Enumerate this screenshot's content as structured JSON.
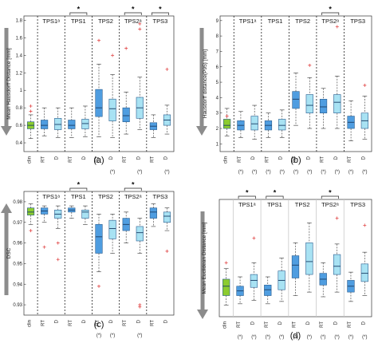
{
  "colors": {
    "clin": "#8ccc2e",
    "rt": "#4f9de0",
    "d": "#a8e2f3",
    "outlier": "#e24b4b",
    "arrow": "#8c8c8c"
  },
  "chart_data": [
    {
      "panel": "a",
      "type": "box",
      "panel_label": "(a)",
      "ylabel": "Mean Hausdorff Distance [mm]",
      "ylim": [
        0.3,
        1.85
      ],
      "yticks": [
        0.4,
        0.6,
        0.8,
        1.0,
        1.2,
        1.4,
        1.6,
        1.8
      ],
      "arrow": "down",
      "groups": [
        "TPS1ᵃ",
        "TPS1",
        "TPS2",
        "TPS2ᵃ",
        "TPS3"
      ],
      "brackets": [
        1,
        3,
        4
      ],
      "boxes": [
        {
          "label": "clin",
          "kind": "clin",
          "q1": 0.56,
          "med": 0.6,
          "q3": 0.64,
          "lo": 0.45,
          "hi": 0.72,
          "out": [
            0.82,
            0.76
          ]
        },
        {
          "label": "RT",
          "kind": "rt",
          "q1": 0.56,
          "med": 0.6,
          "q3": 0.66,
          "lo": 0.48,
          "hi": 0.8,
          "out": []
        },
        {
          "label": "D",
          "kind": "d",
          "q1": 0.55,
          "med": 0.61,
          "q3": 0.68,
          "lo": 0.46,
          "hi": 0.8,
          "out": []
        },
        {
          "label": "RT",
          "kind": "rt",
          "q1": 0.56,
          "med": 0.6,
          "q3": 0.66,
          "lo": 0.46,
          "hi": 0.8,
          "out": []
        },
        {
          "label": "D",
          "kind": "d",
          "q1": 0.56,
          "med": 0.62,
          "q3": 0.67,
          "lo": 0.47,
          "hi": 0.82,
          "out": []
        },
        {
          "label": "RT",
          "kind": "rt",
          "q1": 0.7,
          "med": 0.8,
          "q3": 1.01,
          "lo": 0.47,
          "hi": 1.3,
          "out": [
            1.57
          ]
        },
        {
          "label": "D",
          "kind": "d",
          "q1": 0.65,
          "med": 0.79,
          "q3": 0.9,
          "lo": 0.46,
          "hi": 1.18,
          "out": [
            1.4
          ]
        },
        {
          "label": "RT",
          "kind": "rt",
          "q1": 0.64,
          "med": 0.71,
          "q3": 0.8,
          "lo": 0.5,
          "hi": 0.98,
          "out": [
            1.48
          ]
        },
        {
          "label": "D",
          "kind": "d",
          "q1": 0.68,
          "med": 0.8,
          "q3": 0.92,
          "lo": 0.55,
          "hi": 1.15,
          "out": [
            1.7,
            1.76
          ]
        },
        {
          "label": "RT",
          "kind": "rt",
          "q1": 0.55,
          "med": 0.59,
          "q3": 0.63,
          "lo": 0.46,
          "hi": 0.72,
          "out": []
        },
        {
          "label": "D",
          "kind": "d",
          "q1": 0.6,
          "med": 0.66,
          "q3": 0.72,
          "lo": 0.5,
          "hi": 0.83,
          "out": [
            1.24
          ]
        }
      ],
      "star_under": [
        false,
        false,
        false,
        false,
        false,
        false,
        true,
        false,
        true,
        false,
        true
      ]
    },
    {
      "panel": "b",
      "type": "box",
      "panel_label": "(b)",
      "ylabel": "Hausdorff distance(P95) [mm]",
      "ylim": [
        0.5,
        9.3
      ],
      "yticks": [
        1,
        2,
        3,
        4,
        5,
        6,
        7,
        8,
        9
      ],
      "arrow": "down",
      "groups": [
        "TPS1ᵃ",
        "TPS1",
        "TPS2",
        "TPS2ᵃ",
        "TPS3"
      ],
      "brackets": [
        3
      ],
      "boxes": [
        {
          "label": "clin",
          "kind": "clin",
          "q1": 2.0,
          "med": 2.2,
          "q3": 2.6,
          "lo": 1.5,
          "hi": 3.3,
          "out": [
            2.8
          ]
        },
        {
          "label": "RT",
          "kind": "rt",
          "q1": 1.9,
          "med": 2.2,
          "q3": 2.5,
          "lo": 1.4,
          "hi": 3.1,
          "out": []
        },
        {
          "label": "D",
          "kind": "d",
          "q1": 1.9,
          "med": 2.3,
          "q3": 2.8,
          "lo": 1.3,
          "hi": 3.5,
          "out": []
        },
        {
          "label": "RT",
          "kind": "rt",
          "q1": 1.9,
          "med": 2.2,
          "q3": 2.5,
          "lo": 1.4,
          "hi": 3.0,
          "out": []
        },
        {
          "label": "D",
          "kind": "d",
          "q1": 1.9,
          "med": 2.2,
          "q3": 2.6,
          "lo": 1.4,
          "hi": 3.2,
          "out": []
        },
        {
          "label": "RT",
          "kind": "rt",
          "q1": 3.3,
          "med": 3.9,
          "q3": 4.4,
          "lo": 2.2,
          "hi": 5.6,
          "out": []
        },
        {
          "label": "D",
          "kind": "d",
          "q1": 3.0,
          "med": 3.5,
          "q3": 4.2,
          "lo": 2.0,
          "hi": 5.3,
          "out": [
            6.1
          ]
        },
        {
          "label": "RT",
          "kind": "rt",
          "q1": 3.0,
          "med": 3.4,
          "q3": 3.9,
          "lo": 2.0,
          "hi": 4.6,
          "out": []
        },
        {
          "label": "D",
          "kind": "d",
          "q1": 3.0,
          "med": 3.7,
          "q3": 4.2,
          "lo": 2.0,
          "hi": 5.4,
          "out": [
            8.6
          ]
        },
        {
          "label": "RT",
          "kind": "rt",
          "q1": 2.0,
          "med": 2.4,
          "q3": 2.8,
          "lo": 1.2,
          "hi": 3.8,
          "out": []
        },
        {
          "label": "D",
          "kind": "d",
          "q1": 2.0,
          "med": 2.5,
          "q3": 3.0,
          "lo": 1.3,
          "hi": 4.1,
          "out": [
            4.8
          ]
        }
      ],
      "star_under": [
        false,
        true,
        true,
        true,
        true,
        true,
        true,
        true,
        true,
        true,
        true
      ]
    },
    {
      "panel": "c",
      "type": "box",
      "panel_label": "(c)",
      "ylabel": "DSC",
      "ylim": [
        0.925,
        0.985
      ],
      "yticks": [
        0.93,
        0.94,
        0.95,
        0.96,
        0.97,
        0.98
      ],
      "arrow": "up",
      "groups": [
        "TPS1ᵃ",
        "TPS1",
        "TPS2",
        "TPS2ᵃ",
        "TPS3"
      ],
      "brackets": [
        1,
        3
      ],
      "boxes": [
        {
          "label": "clin",
          "kind": "clin",
          "q1": 0.9735,
          "med": 0.975,
          "q3": 0.977,
          "lo": 0.969,
          "hi": 0.979,
          "out": [
            0.966
          ]
        },
        {
          "label": "RT",
          "kind": "rt",
          "q1": 0.974,
          "med": 0.9755,
          "q3": 0.977,
          "lo": 0.97,
          "hi": 0.978,
          "out": [
            0.958
          ]
        },
        {
          "label": "D",
          "kind": "d",
          "q1": 0.972,
          "med": 0.974,
          "q3": 0.976,
          "lo": 0.967,
          "hi": 0.978,
          "out": [
            0.96,
            0.952
          ]
        },
        {
          "label": "RT",
          "kind": "rt",
          "q1": 0.975,
          "med": 0.976,
          "q3": 0.977,
          "lo": 0.972,
          "hi": 0.978,
          "out": []
        },
        {
          "label": "D",
          "kind": "d",
          "q1": 0.972,
          "med": 0.975,
          "q3": 0.976,
          "lo": 0.969,
          "hi": 0.978,
          "out": []
        },
        {
          "label": "RT",
          "kind": "rt",
          "q1": 0.955,
          "med": 0.963,
          "q3": 0.969,
          "lo": 0.946,
          "hi": 0.974,
          "out": [
            0.939
          ]
        },
        {
          "label": "D",
          "kind": "d",
          "q1": 0.962,
          "med": 0.967,
          "q3": 0.971,
          "lo": 0.955,
          "hi": 0.974,
          "out": []
        },
        {
          "label": "RT",
          "kind": "rt",
          "q1": 0.966,
          "med": 0.969,
          "q3": 0.972,
          "lo": 0.96,
          "hi": 0.975,
          "out": []
        },
        {
          "label": "D",
          "kind": "d",
          "q1": 0.961,
          "med": 0.965,
          "q3": 0.968,
          "lo": 0.955,
          "hi": 0.972,
          "out": [
            0.93,
            0.929
          ]
        },
        {
          "label": "RT",
          "kind": "rt",
          "q1": 0.972,
          "med": 0.975,
          "q3": 0.977,
          "lo": 0.968,
          "hi": 0.979,
          "out": []
        },
        {
          "label": "D",
          "kind": "d",
          "q1": 0.97,
          "med": 0.973,
          "q3": 0.975,
          "lo": 0.966,
          "hi": 0.977,
          "out": [
            0.956
          ]
        }
      ],
      "star_under": [
        false,
        false,
        false,
        false,
        false,
        true,
        true,
        false,
        true,
        false,
        false
      ]
    },
    {
      "panel": "d",
      "type": "box",
      "panel_label": "(d)",
      "ylabel": "Mean Euclidean Distance [mm]",
      "ylim": [
        0,
        10
      ],
      "yticks": [],
      "arrow": "down",
      "groups": [
        "TPS1ᵃ",
        "TPS1",
        "TPS2",
        "TPS2ᵃ",
        "TPS3"
      ],
      "brackets": [
        0,
        1,
        3
      ],
      "boxes": [
        {
          "label": "clin",
          "kind": "clin",
          "q1": 1.8,
          "med": 2.6,
          "q3": 3.2,
          "lo": 1.0,
          "hi": 4.1,
          "out": [
            4.6
          ]
        },
        {
          "label": "RT",
          "kind": "rt",
          "q1": 1.8,
          "med": 2.2,
          "q3": 2.6,
          "lo": 1.1,
          "hi": 3.4,
          "out": []
        },
        {
          "label": "D",
          "kind": "d",
          "q1": 2.5,
          "med": 3.1,
          "q3": 3.6,
          "lo": 1.4,
          "hi": 4.6,
          "out": [
            6.7
          ]
        },
        {
          "label": "RT",
          "kind": "rt",
          "q1": 1.8,
          "med": 2.3,
          "q3": 2.7,
          "lo": 1.1,
          "hi": 3.4,
          "out": []
        },
        {
          "label": "D",
          "kind": "d",
          "q1": 2.3,
          "med": 3.1,
          "q3": 3.9,
          "lo": 1.3,
          "hi": 5.0,
          "out": []
        },
        {
          "label": "RT",
          "kind": "rt",
          "q1": 3.3,
          "med": 4.4,
          "q3": 5.2,
          "lo": 1.8,
          "hi": 6.3,
          "out": []
        },
        {
          "label": "D",
          "kind": "d",
          "q1": 3.6,
          "med": 4.7,
          "q3": 6.3,
          "lo": 2.1,
          "hi": 8.0,
          "out": []
        },
        {
          "label": "RT",
          "kind": "rt",
          "q1": 2.7,
          "med": 3.2,
          "q3": 3.7,
          "lo": 1.7,
          "hi": 4.6,
          "out": []
        },
        {
          "label": "D",
          "kind": "d",
          "q1": 3.6,
          "med": 4.3,
          "q3": 5.3,
          "lo": 2.1,
          "hi": 6.2,
          "out": [
            8.4
          ]
        },
        {
          "label": "RT",
          "kind": "rt",
          "q1": 2.1,
          "med": 2.6,
          "q3": 3.1,
          "lo": 1.3,
          "hi": 3.8,
          "out": []
        },
        {
          "label": "D",
          "kind": "d",
          "q1": 3.0,
          "med": 3.7,
          "q3": 4.5,
          "lo": 1.8,
          "hi": 5.5,
          "out": [
            7.8
          ]
        }
      ],
      "star_under": [
        false,
        true,
        true,
        true,
        true,
        true,
        true,
        true,
        true,
        true,
        true
      ]
    }
  ]
}
